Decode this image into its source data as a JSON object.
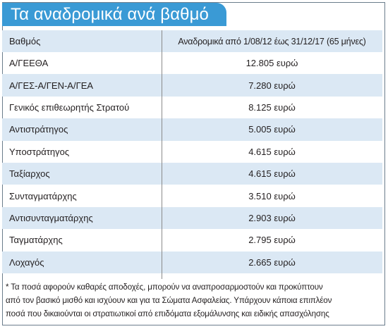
{
  "title": "Τα αναδρομικά ανά βαθμό",
  "table": {
    "header": {
      "rank": "Βαθμός",
      "value": "Αναδρομικά από 1/08/12 έως 31/12/17 (65 μήνες)"
    },
    "rows": [
      {
        "rank": "Α/ΓΕΕΘΑ",
        "value": "12.805 ευρώ"
      },
      {
        "rank": "Α/ΓΕΣ-Α/ΓΕΝ-Α/ΓΕΑ",
        "value": "7.280 ευρώ"
      },
      {
        "rank": "Γενικός επιθεωρητής Στρατού",
        "value": "8.125 ευρώ"
      },
      {
        "rank": "Αντιστράτηγος",
        "value": "5.005 ευρώ"
      },
      {
        "rank": "Υποστράτηγος",
        "value": "4.615 ευρώ"
      },
      {
        "rank": "Ταξίαρχος",
        "value": "4.615 ευρώ"
      },
      {
        "rank": "Συνταγματάρχης",
        "value": "3.510 ευρώ"
      },
      {
        "rank": "Αντισυνταγματάρχης",
        "value": "2.903 ευρώ"
      },
      {
        "rank": "Ταγματάρχης",
        "value": "2.795 ευρώ"
      },
      {
        "rank": "Λοχαγός",
        "value": "2.665 ευρώ"
      }
    ]
  },
  "footnote": {
    "line1": "* Τα ποσά αφορούν καθαρές αποδοχές, μπορούν να αναπροσαρμοστούν και προκύπτουν",
    "line2": "από τον βασικό μισθό και ισχύουν και για τα Σώματα Ασφαλείας. Υπάρχουν κάποια επιπλέον",
    "line3": "ποσά που δικαιούνται οι στρατιωτικοί από επιδόματα εξομάλυνσης και ειδικής απασχόλησης"
  },
  "colors": {
    "title_bg": "#3a9ad5",
    "shaded_row": "#dbe8f4",
    "border": "#6b7d8c"
  }
}
